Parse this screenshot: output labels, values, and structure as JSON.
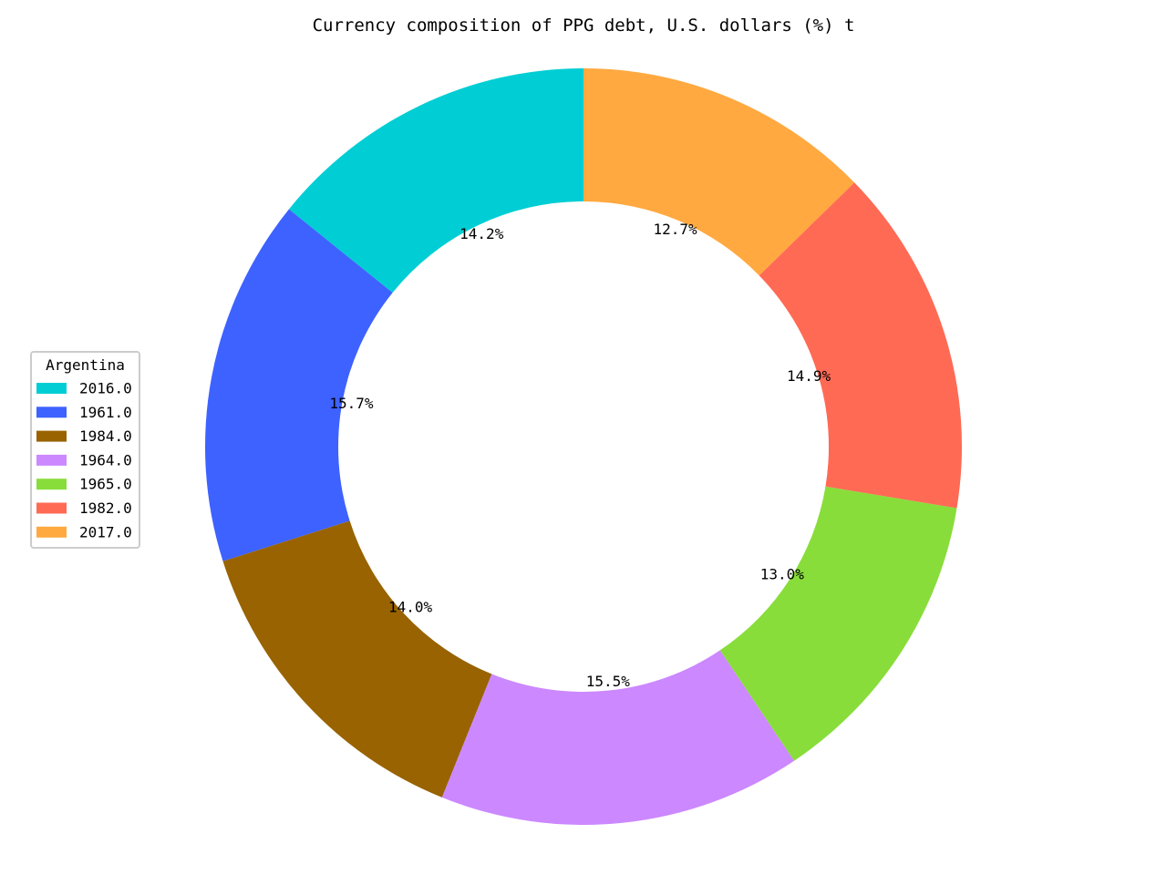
{
  "chart_data": {
    "type": "pie",
    "donut": true,
    "title": "Currency composition of PPG debt, U.S. dollars (%) t",
    "legend_title": "Argentina",
    "legend_position": "center-left",
    "start_angle": "90 degrees (top)",
    "direction": "counterclockwise",
    "categories": [
      "2016.0",
      "1961.0",
      "1984.0",
      "1964.0",
      "1965.0",
      "1982.0",
      "2017.0"
    ],
    "values": [
      14.2,
      15.7,
      14.0,
      15.5,
      13.0,
      14.9,
      12.7
    ],
    "labels": [
      "14.2%",
      "15.7%",
      "14.0%",
      "15.5%",
      "13.0%",
      "14.9%",
      "12.7%"
    ],
    "colors": [
      "#00ced4",
      "#3d62ff",
      "#986300",
      "#cc88ff",
      "#88dd3a",
      "#ff6a55",
      "#ffa940"
    ]
  }
}
